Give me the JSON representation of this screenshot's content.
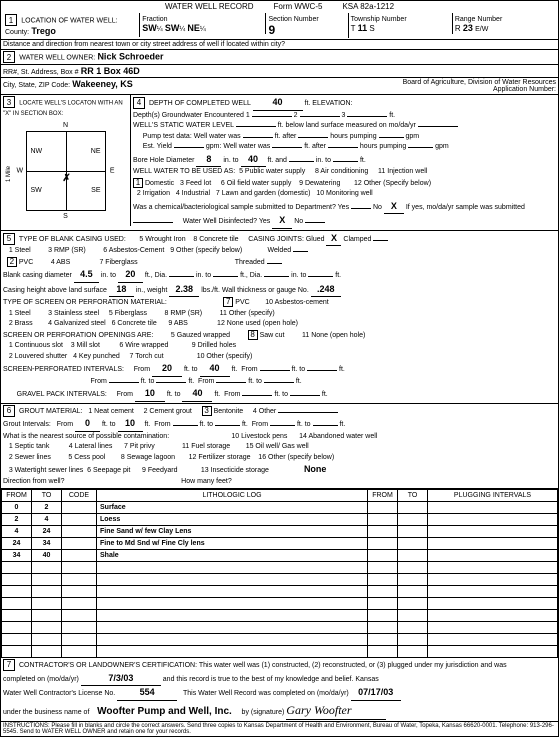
{
  "header": {
    "title": "WATER WELL RECORD",
    "form": "Form WWC-5",
    "ksa": "KSA 82a-1212"
  },
  "section1": {
    "title": "LOCATION OF WATER WELL:",
    "county_label": "County:",
    "county": "Trego",
    "fraction_label": "Fraction",
    "frac1": "SW",
    "frac1s": "¼",
    "frac2": "SW",
    "frac2s": "¼",
    "frac3": "NE",
    "frac3s": "¼",
    "section_label": "Section Number",
    "section": "9",
    "township_label": "Township Number",
    "township_t": "T",
    "township": "11",
    "township_s": "S",
    "range_label": "Range Number",
    "range_r": "R",
    "range": "23",
    "range_ew": "E/W",
    "distance_label": "Distance and direction from nearest town or city street address of well if located within city?"
  },
  "section2": {
    "title": "WATER WELL OWNER:",
    "name": "Nick Schroeder",
    "addr_label": "RR#, St. Address, Box #",
    "addr": "RR 1 Box 46D",
    "city_label": "City, State, ZIP Code:",
    "city": "Wakeeney, KS",
    "board": "Board of Agriculture, Division of Water Resources",
    "app_label": "Application Number:"
  },
  "section3": {
    "title": "LOCATE WELL'S LOCATON WITH AN \"X\" IN SECTION BOX:",
    "n": "N",
    "s": "S",
    "e": "E",
    "w": "W",
    "nw": "NW",
    "ne": "NE",
    "sw": "SW",
    "se": "SE",
    "scale": "1 Mile"
  },
  "section4": {
    "title": "DEPTH OF COMPLETED WELL",
    "depth": "40",
    "elev_label": "ft. ELEVATION:",
    "depths_label": "Depth(s) Groundwater Encountered",
    "d1": "1",
    "d2": "2",
    "d3": "3",
    "static_label": "WELL'S STATIC WATER LEVEL",
    "static_suffix": "ft. below land surface measured on mo/da/yr",
    "pump_label": "Pump test data:",
    "pump1": "Well water was",
    "pump2": "ft. after",
    "pump3": "hours pumping",
    "pump4": "gpm",
    "est_label": "Est. Yield",
    "est_gpm": "gpm:",
    "bore_label": "Bore Hole Diameter",
    "bore1": "8",
    "bore_in1": "in. to",
    "bore2": "40",
    "bore_ft": "ft. and",
    "bore_in2": "in. to",
    "bore_ft2": "ft.",
    "use_label": "WELL WATER TO BE USED AS:",
    "u1": "Domestic",
    "u2": "2 Irrigation",
    "u3": "3 Feed lot",
    "u4": "4 Industrial",
    "u5": "5 Public water supply",
    "u6": "6 Oil field water supply",
    "u7": "7 Lawn and garden (domestic)",
    "u8": "8 Air conditioning",
    "u9": "9 Dewatering",
    "u10": "10 Monitoring well",
    "u11": "11 Injection well",
    "u12": "12 Other (Specify below)",
    "chem_label": "Was a chemical/bacteriological sample submitted to Department? Yes",
    "chem_no": "No",
    "chem_x": "X",
    "chem_suffix": "If yes, mo/da/yr sample was submitted",
    "disinfect_label": "Water Well Disinfected? Yes",
    "disinfect_x": "X",
    "disinfect_no": "No"
  },
  "section5": {
    "title": "TYPE OF BLANK CASING USED:",
    "c1": "1  Steel",
    "c2": "PVC",
    "c3": "3  RMP (SR)",
    "c4": "4  ABS",
    "c5": "5  Wrought Iron",
    "c6": "6  Asbestos-Cement",
    "c7": "7  Fiberglass",
    "c8": "8  Concrete tile",
    "c9": "9  Other (specify below)",
    "joints_label": "CASING JOINTS: Glued",
    "joints_x": "X",
    "joints2": "Clamped",
    "joints3": "Welded",
    "joints4": "Threaded",
    "diam_label": "Blank casing diameter",
    "diam": "4.5",
    "diam_in": "in. to",
    "diam_ft": "20",
    "diam_suffix": "ft., Dia.",
    "diam_in2": "in. to",
    "diam_ft2": "ft., Dia.",
    "diam_in3": "in. to",
    "diam_ft3": "ft.",
    "height_label": "Casing height above land surface",
    "height": "18",
    "height_in": "in., weight",
    "weight": "2.38",
    "weight_suffix": "lbs./ft. Wall thickness or gauge No.",
    "gauge": ".248",
    "screen_title": "TYPE OF SCREEN OR PERFORATION MATERIAL:",
    "s1": "1  Steel",
    "s2": "2  Brass",
    "s3": "3  Stainless steel",
    "s4": "4  Galvanized steel",
    "s5": "5  Fiberglass",
    "s6": "6  Concrete tile",
    "s7": "PVC",
    "s8": "8  RMP (SR)",
    "s9": "9  ABS",
    "s10": "10  Asbestos-cement",
    "s11": "11  Other (specify)",
    "s12": "12  None used (open hole)",
    "open_title": "SCREEN OR PERFORATION OPENINGS ARE:",
    "o1": "1  Continuous slot",
    "o2": "2  Louvered shutter",
    "o3": "3  Mill slot",
    "o4": "4  Key punched",
    "o5": "5  Gauzed wrapped",
    "o6": "6  Wire wrapped",
    "o7": "7  Torch cut",
    "o8": "Saw cut",
    "o9": "9  Drilled holes",
    "o10": "10  Other (specify)",
    "o11": "11  None (open hole)",
    "perf_label": "SCREEN-PERFORATED INTERVALS:",
    "perf_from": "From",
    "perf_to": "ft. to",
    "perf_ft": "ft.",
    "perf1f": "20",
    "perf1t": "40",
    "gravel_label": "GRAVEL PACK INTERVALS:",
    "grav1f": "10",
    "grav1t": "40"
  },
  "section6": {
    "title": "GROUT MATERIAL:",
    "g1": "1  Neat cement",
    "g2": "2  Cement grout",
    "g3": "Bentonite",
    "g4": "4  Other",
    "interval_label": "Grout Intervals:",
    "from": "From",
    "to": "ft. to",
    "gi1f": "0",
    "gi1t": "10",
    "contam_label": "What is the nearest source of possible contamination:",
    "p1": "1  Septic tank",
    "p2": "2  Sewer lines",
    "p3": "3  Watertight sewer lines",
    "p4": "4  Lateral lines",
    "p5": "5  Cess pool",
    "p6": "6  Seepage pit",
    "p7": "7  Pit privy",
    "p8": "8  Sewage lagoon",
    "p9": "9  Feedyard",
    "p10": "10  Livestock pens",
    "p11": "11  Fuel storage",
    "p12": "12  Fertilizer storage",
    "p13": "13  Insecticide storage",
    "p14": "14  Abandoned water well",
    "p15": "15  Oil well/ Gas well",
    "p16": "16  Other (specify below)",
    "dir_label": "Direction from well?",
    "feet_label": "How many feet?",
    "none": "None"
  },
  "log": {
    "headers": {
      "from": "FROM",
      "to": "TO",
      "code": "CODE",
      "litho": "LITHOLOGIC LOG",
      "plug_from": "FROM",
      "plug_to": "TO",
      "plug": "PLUGGING INTERVALS"
    },
    "rows": [
      {
        "from": "0",
        "to": "2",
        "code": "",
        "litho": "Surface"
      },
      {
        "from": "2",
        "to": "4",
        "code": "",
        "litho": "Loess"
      },
      {
        "from": "4",
        "to": "24",
        "code": "",
        "litho": "Fine Sand w/ few Clay Lens"
      },
      {
        "from": "24",
        "to": "34",
        "code": "",
        "litho": "Fine to Md Snd w/ Fine Cly lens"
      },
      {
        "from": "34",
        "to": "40",
        "code": "",
        "litho": "Shale"
      }
    ]
  },
  "section7": {
    "cert": "CONTRACTOR'S OR LANDOWNER'S CERTIFICATION: This water well was (1) constructed, (2) reconstructed, or (3) plugged under my jurisdiction and was",
    "comp_label": "completed on (mo/da/yr)",
    "comp_date": "7/3/03",
    "record": "and this record is true to the best of my knowledge and belief. Kansas",
    "lic_label": "Water Well Contractor's License No.",
    "lic": "554",
    "rec_label": "This Water Well Record was completed on (mo/da/yr)",
    "rec_date": "07/17/03",
    "bus_label": "under the business name of",
    "bus": "Woofter Pump and Well, Inc.",
    "sig_label": "by (signature)",
    "instructions": "INSTRUCTIONS: Please fill in blanks and circle the correct answers. Send three copies to Kansas Department of Health and Environment, Bureau of Water, Topeka, Kansas 66620-0001. Telephone: 913-296-5545. Send to WATER WELL OWNER and retain one for your records."
  }
}
